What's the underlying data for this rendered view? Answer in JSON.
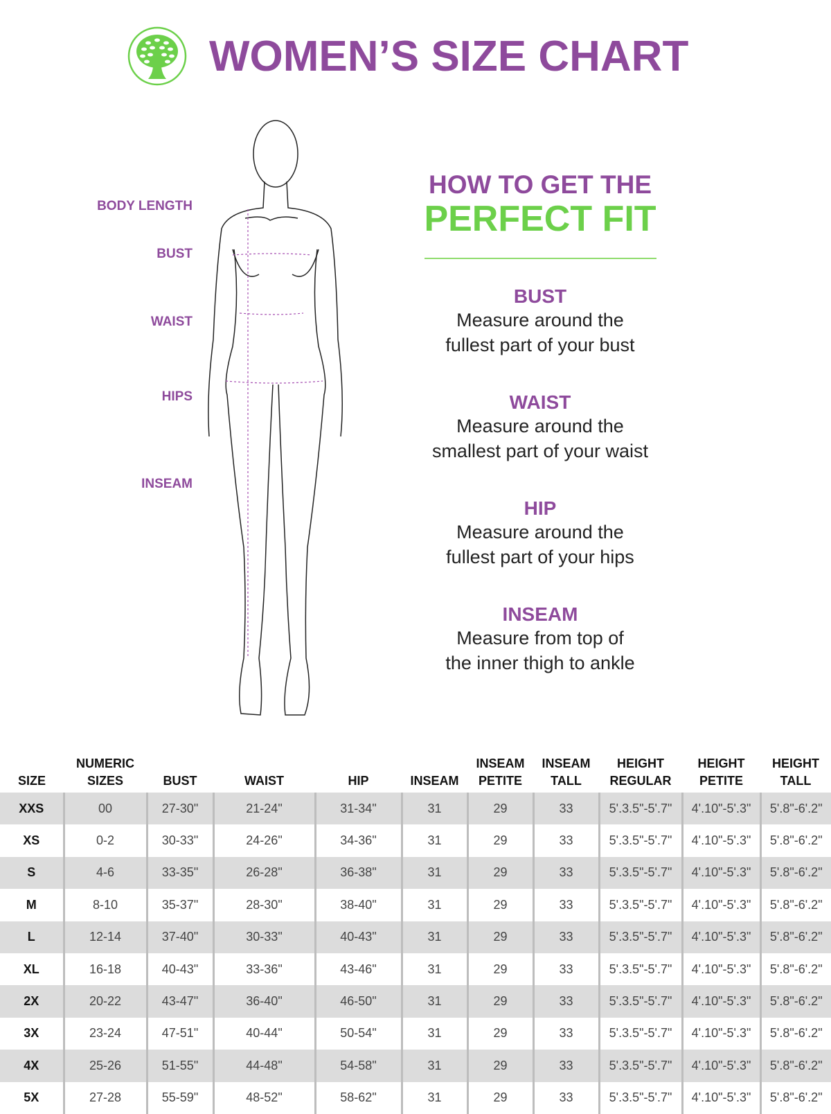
{
  "header": {
    "title": "WOMEN’S SIZE CHART",
    "logo_icon": "tree-logo-icon",
    "brand_green": "#6cd04a",
    "brand_purple": "#8e4a9c"
  },
  "figure_labels": {
    "body_length": "BODY LENGTH",
    "bust": "BUST",
    "waist": "WAIST",
    "hips": "HIPS",
    "inseam": "INSEAM"
  },
  "fit_guide": {
    "heading_line1": "HOW TO GET THE",
    "heading_line2": "PERFECT FIT",
    "items": [
      {
        "title": "BUST",
        "line1": "Measure around the",
        "line2": "fullest part of your bust"
      },
      {
        "title": "WAIST",
        "line1": "Measure around the",
        "line2": "smallest part of your waist"
      },
      {
        "title": "HIP",
        "line1": "Measure around the",
        "line2": "fullest part of your hips"
      },
      {
        "title": "INSEAM",
        "line1": "Measure from top of",
        "line2": "the inner thigh to ankle"
      }
    ]
  },
  "table": {
    "headers": [
      "SIZE",
      "NUMERIC SIZES",
      "BUST",
      "WAIST",
      "HIP",
      "INSEAM",
      "INSEAM PETITE",
      "INSEAM TALL",
      "HEIGHT REGULAR",
      "HEIGHT PETITE",
      "HEIGHT TALL"
    ],
    "rows": [
      [
        "XXS",
        "00",
        "27-30\"",
        "21-24\"",
        "31-34\"",
        "31",
        "29",
        "33",
        "5'.3.5\"-5'.7\"",
        "4'.10\"-5'.3\"",
        "5'.8\"-6'.2\""
      ],
      [
        "XS",
        "0-2",
        "30-33\"",
        "24-26\"",
        "34-36\"",
        "31",
        "29",
        "33",
        "5'.3.5\"-5'.7\"",
        "4'.10\"-5'.3\"",
        "5'.8\"-6'.2\""
      ],
      [
        "S",
        "4-6",
        "33-35\"",
        "26-28\"",
        "36-38\"",
        "31",
        "29",
        "33",
        "5'.3.5\"-5'.7\"",
        "4'.10\"-5'.3\"",
        "5'.8\"-6'.2\""
      ],
      [
        "M",
        "8-10",
        "35-37\"",
        "28-30\"",
        "38-40\"",
        "31",
        "29",
        "33",
        "5'.3.5\"-5'.7\"",
        "4'.10\"-5'.3\"",
        "5'.8\"-6'.2\""
      ],
      [
        "L",
        "12-14",
        "37-40\"",
        "30-33\"",
        "40-43\"",
        "31",
        "29",
        "33",
        "5'.3.5\"-5'.7\"",
        "4'.10\"-5'.3\"",
        "5'.8\"-6'.2\""
      ],
      [
        "XL",
        "16-18",
        "40-43\"",
        "33-36\"",
        "43-46\"",
        "31",
        "29",
        "33",
        "5'.3.5\"-5'.7\"",
        "4'.10\"-5'.3\"",
        "5'.8\"-6'.2\""
      ],
      [
        "2X",
        "20-22",
        "43-47\"",
        "36-40\"",
        "46-50\"",
        "31",
        "29",
        "33",
        "5'.3.5\"-5'.7\"",
        "4'.10\"-5'.3\"",
        "5'.8\"-6'.2\""
      ],
      [
        "3X",
        "23-24",
        "47-51\"",
        "40-44\"",
        "50-54\"",
        "31",
        "29",
        "33",
        "5'.3.5\"-5'.7\"",
        "4'.10\"-5'.3\"",
        "5'.8\"-6'.2\""
      ],
      [
        "4X",
        "25-26",
        "51-55\"",
        "44-48\"",
        "54-58\"",
        "31",
        "29",
        "33",
        "5'.3.5\"-5'.7\"",
        "4'.10\"-5'.3\"",
        "5'.8\"-6'.2\""
      ],
      [
        "5X",
        "27-28",
        "55-59\"",
        "48-52\"",
        "58-62\"",
        "31",
        "29",
        "33",
        "5'.3.5\"-5'.7\"",
        "4'.10\"-5'.3\"",
        "5'.8\"-6'.2\""
      ]
    ]
  }
}
